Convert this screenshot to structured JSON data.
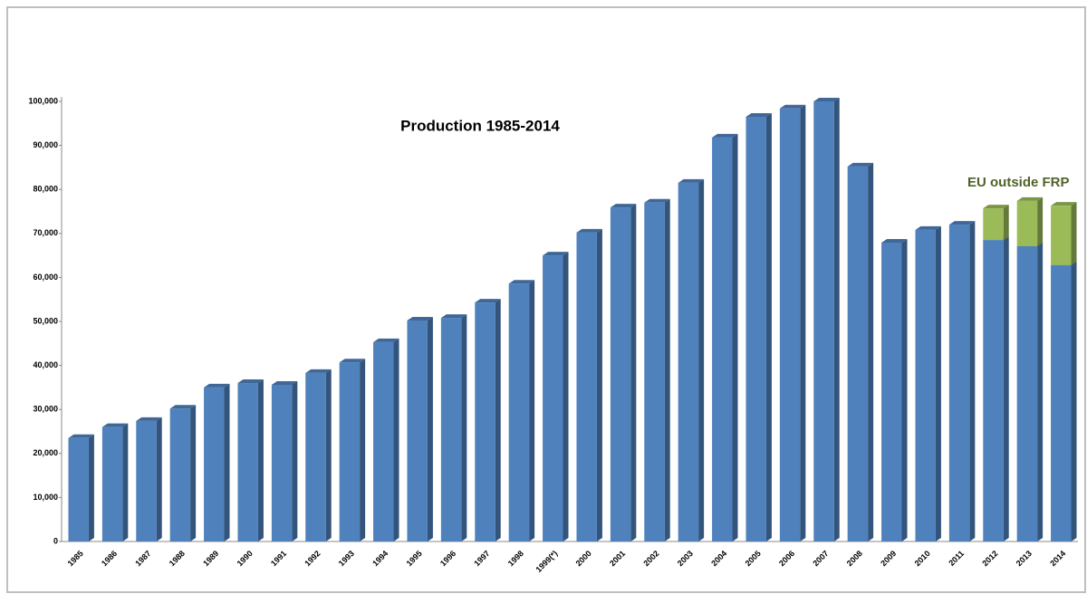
{
  "chart_data": {
    "type": "bar",
    "stacked": true,
    "title": "Production 1985-2014",
    "annotation": "EU outside FRP",
    "categories": [
      "1985",
      "1986",
      "1987",
      "1988",
      "1989",
      "1990",
      "1991",
      "1992",
      "1993",
      "1994",
      "1995",
      "1996",
      "1997",
      "1998",
      "1999(*)",
      "2000",
      "2001",
      "2002",
      "2003",
      "2004",
      "2005",
      "2006",
      "2007",
      "2008",
      "2009",
      "2010",
      "2011",
      "2012",
      "2013",
      "2014"
    ],
    "series": [
      {
        "color": "#4f81bd",
        "values": [
          23500,
          26000,
          27400,
          30200,
          35000,
          36000,
          35600,
          38300,
          40700,
          45300,
          50200,
          50800,
          54300,
          58600,
          65000,
          70200,
          75900,
          77000,
          81500,
          91800,
          96500,
          98400,
          100000,
          85200,
          67900,
          70800,
          72000,
          68500,
          67100,
          62800
        ]
      },
      {
        "color": "#9bbb59",
        "values": [
          null,
          null,
          null,
          null,
          null,
          null,
          null,
          null,
          null,
          null,
          null,
          null,
          null,
          null,
          null,
          null,
          null,
          null,
          null,
          null,
          null,
          null,
          null,
          null,
          null,
          null,
          null,
          7200,
          10300,
          13500
        ]
      }
    ],
    "ylim": [
      0,
      100000
    ],
    "yticks": [
      {
        "value": 0,
        "label": "0"
      },
      {
        "value": 10000,
        "label": "10,000"
      },
      {
        "value": 20000,
        "label": "20,000"
      },
      {
        "value": 30000,
        "label": "30,000"
      },
      {
        "value": 40000,
        "label": "40,000"
      },
      {
        "value": 50000,
        "label": "50,000"
      },
      {
        "value": 60000,
        "label": "60,000"
      },
      {
        "value": 70000,
        "label": "70,000"
      },
      {
        "value": 80000,
        "label": "80,000"
      },
      {
        "value": 90000,
        "label": "90,000"
      },
      {
        "value": 100000,
        "label": "100,000"
      }
    ],
    "grid": false
  }
}
